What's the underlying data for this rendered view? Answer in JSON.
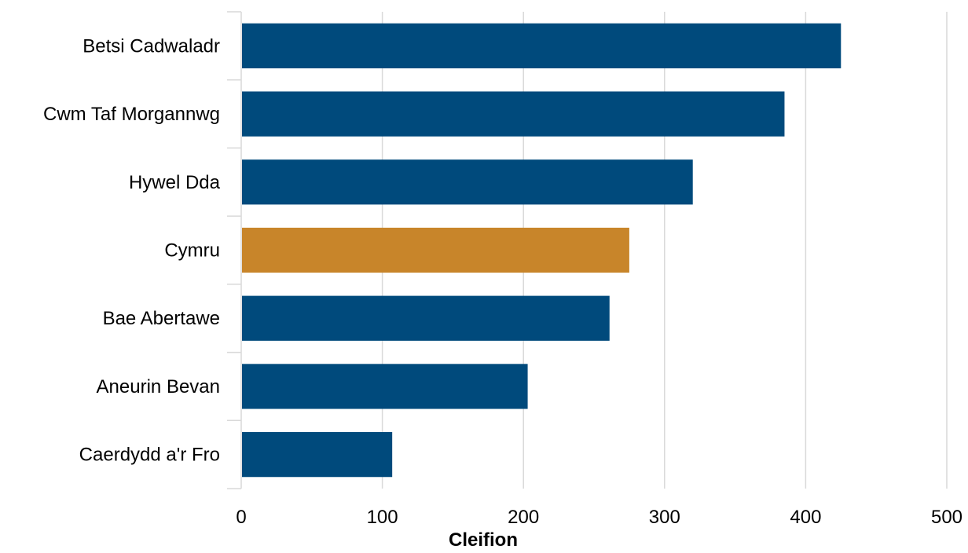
{
  "chart_data": {
    "type": "bar",
    "orientation": "horizontal",
    "categories": [
      "Betsi Cadwaladr",
      "Cwm Taf Morgannwg",
      "Hywel Dda",
      "Cymru",
      "Bae Abertawe",
      "Aneurin Bevan",
      "Caerdydd a'r Fro"
    ],
    "values": [
      425,
      385,
      320,
      275,
      261,
      203,
      107
    ],
    "highlight": "Cymru",
    "colors": {
      "default": "#004a7c",
      "highlight": "#c8852a",
      "grid": "#d9d9d9"
    },
    "xlabel": "Cleifion",
    "xlim": [
      0,
      500
    ],
    "xticks": [
      "0",
      "100",
      "200",
      "300",
      "400",
      "500"
    ],
    "grid": "vertical"
  }
}
